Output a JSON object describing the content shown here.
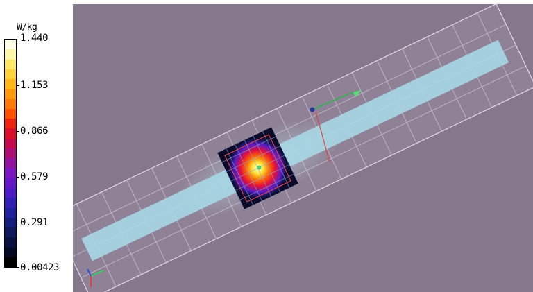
{
  "legend": {
    "unit": "W/kg",
    "ticks": [
      {
        "label": "1.440"
      },
      {
        "label": "1.153"
      },
      {
        "label": "0.866"
      },
      {
        "label": "0.579"
      },
      {
        "label": "0.291"
      },
      {
        "label": "0.00423"
      }
    ],
    "colors": [
      "#ffffe8",
      "#fff7a8",
      "#ffe766",
      "#ffd33a",
      "#ffb818",
      "#ff9a0c",
      "#ff7a08",
      "#ff5200",
      "#ef2410",
      "#d8102c",
      "#c40a4c",
      "#ad0e74",
      "#9412a0",
      "#7c16c0",
      "#6418c8",
      "#4c1cc4",
      "#3520b4",
      "#1f229c",
      "#141f7c",
      "#0e1a5c",
      "#09123e",
      "#050a22",
      "#000000"
    ]
  },
  "viewport": {
    "background": "#85778c",
    "object_color": "#a7d6e4",
    "grid_color": "#e3dce8"
  }
}
